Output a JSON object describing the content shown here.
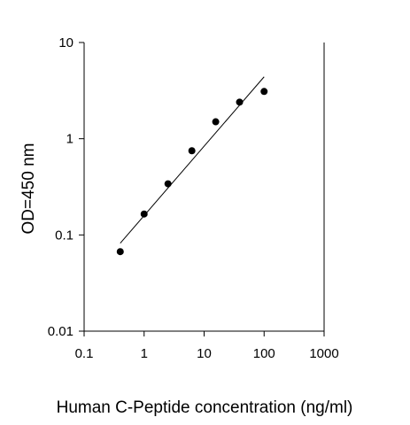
{
  "chart_data": {
    "type": "scatter",
    "title": "",
    "xlabel": "Human C-Peptide concentration (ng/ml)",
    "ylabel": "OD=450 nm",
    "x_scale": "log",
    "y_scale": "log",
    "xlim": [
      0.1,
      1000
    ],
    "ylim": [
      0.01,
      10
    ],
    "x_ticks": [
      0.1,
      1,
      10,
      100,
      1000
    ],
    "x_tick_labels": [
      "0.1",
      "1",
      "10",
      "100",
      "1000"
    ],
    "y_ticks": [
      0.01,
      0.1,
      1,
      10
    ],
    "y_tick_labels": [
      "0.01",
      "0.1",
      "1",
      "10"
    ],
    "grid": false,
    "legend": "none",
    "series": [
      {
        "kind": "points",
        "x": [
          0.4,
          1,
          2.5,
          6.25,
          15.6,
          39,
          100
        ],
        "y": [
          0.067,
          0.165,
          0.34,
          0.75,
          1.5,
          2.4,
          3.1
        ]
      },
      {
        "kind": "fit-line",
        "x": [
          0.4,
          100
        ],
        "y": [
          0.082,
          4.4
        ]
      }
    ],
    "colors": {
      "marker": "#000000",
      "line": "#000000",
      "axis": "#000000"
    }
  }
}
